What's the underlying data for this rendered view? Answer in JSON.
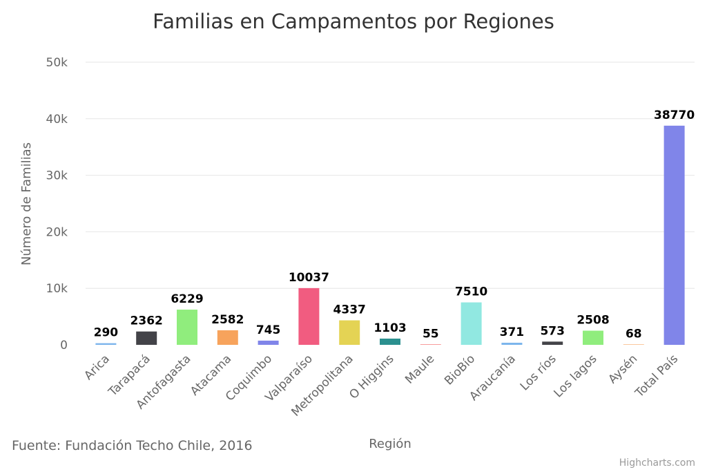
{
  "chart_data": {
    "type": "bar",
    "title": "Familias en Campamentos por Regiones",
    "xlabel": "Región",
    "ylabel": "Número de Familias",
    "ylim": [
      0,
      50000
    ],
    "yticks": [
      0,
      10000,
      20000,
      30000,
      40000,
      50000
    ],
    "ytick_labels": [
      "0",
      "10k",
      "20k",
      "30k",
      "40k",
      "50k"
    ],
    "grid": true,
    "categories": [
      "Arica",
      "Tarapacá",
      "Antofagasta",
      "Atacama",
      "Coquimbo",
      "Valparaíso",
      "Metropolitana",
      "O Higgins",
      "Maule",
      "BioBío",
      "Araucanía",
      "Los ríos",
      "Los lagos",
      "Aysén",
      "Total País"
    ],
    "values": [
      290,
      2362,
      6229,
      2582,
      745,
      10037,
      4337,
      1103,
      55,
      7510,
      371,
      573,
      2508,
      68,
      38770
    ],
    "colors": [
      "#7cb5ec",
      "#434348",
      "#90ed7d",
      "#f7a35c",
      "#8085e9",
      "#f15c80",
      "#e4d354",
      "#2b908f",
      "#f45b5b",
      "#91e8e1",
      "#7cb5ec",
      "#434348",
      "#90ed7d",
      "#f7a35c",
      "#8085e9"
    ]
  },
  "source_note": "Fuente: Fundación Techo Chile, 2016",
  "credits": "Highcharts.com"
}
